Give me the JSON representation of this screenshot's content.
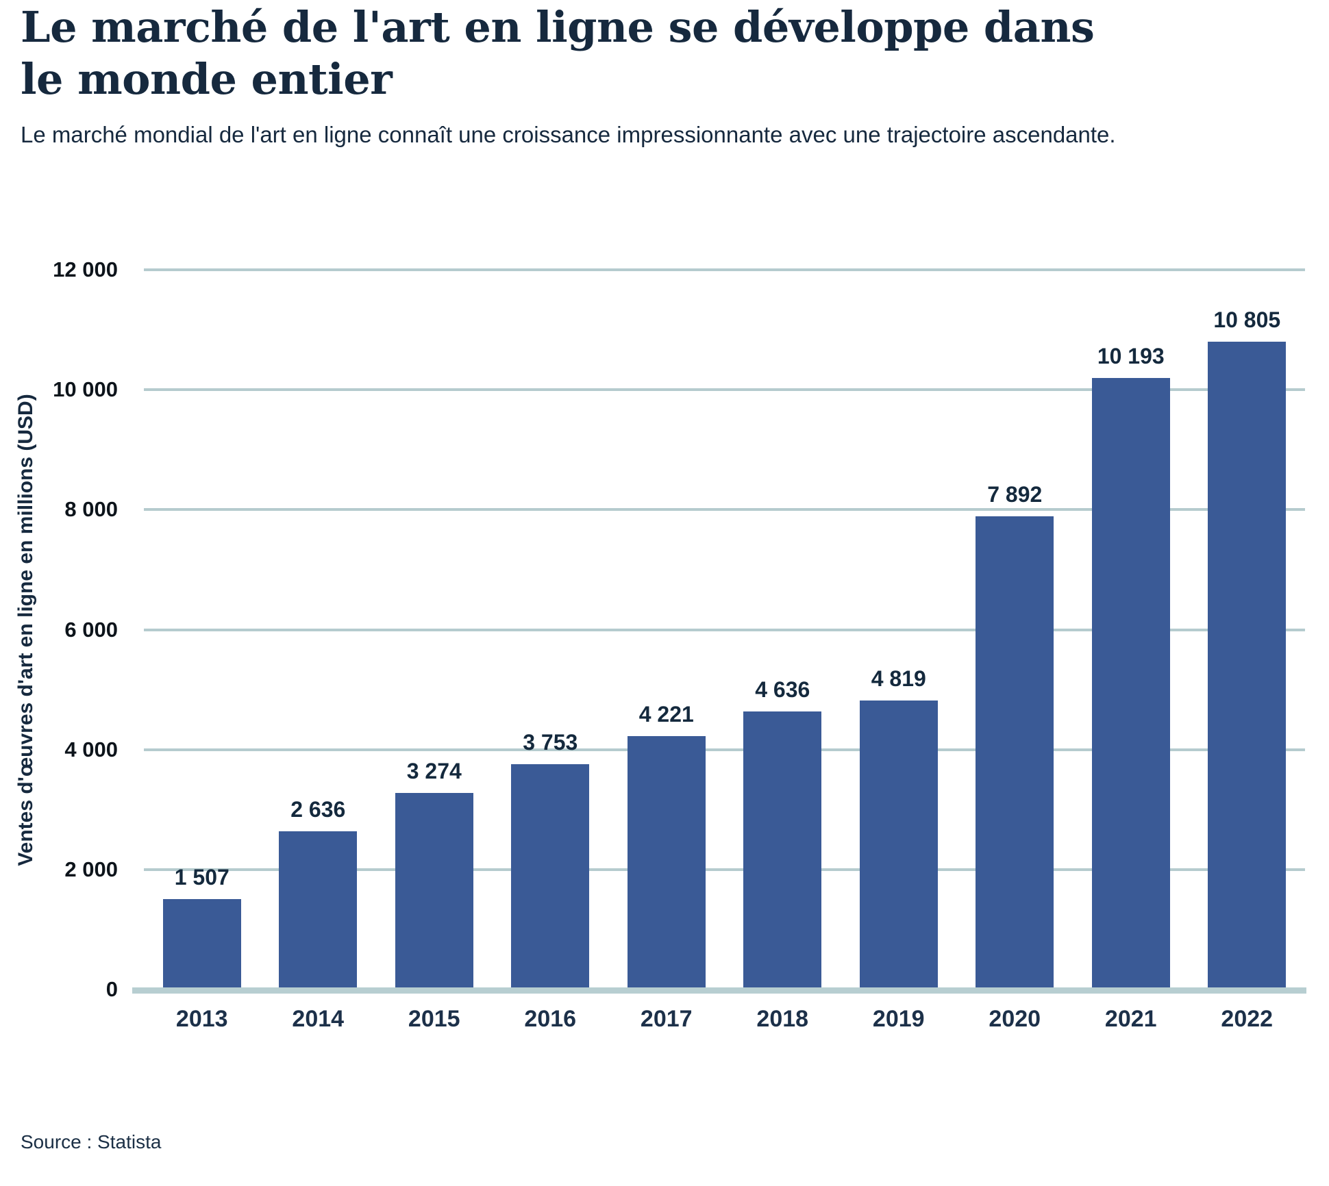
{
  "header": {
    "title": "Le marché de l'art en ligne se développe dans le monde entier",
    "subtitle": "Le marché mondial de l'art en ligne connaît une croissance impressionnante avec une trajectoire ascendante."
  },
  "chart_data": {
    "type": "bar",
    "title": "Le marché de l'art en ligne se développe dans le monde entier",
    "subtitle": "Le marché mondial de l'art en ligne connaît une croissance impressionnante avec une trajectoire ascendante.",
    "categories": [
      "2013",
      "2014",
      "2015",
      "2016",
      "2017",
      "2018",
      "2019",
      "2020",
      "2021",
      "2022"
    ],
    "values": [
      1507,
      2636,
      3274,
      3753,
      4221,
      4636,
      4819,
      7892,
      10193,
      10805
    ],
    "value_labels": [
      "1 507",
      "2 636",
      "3 274",
      "3 753",
      "4 221",
      "4 636",
      "4 819",
      "7 892",
      "10 193",
      "10 805"
    ],
    "xlabel": "",
    "ylabel": "Ventes d'œuvres d'art en ligne en millions (USD)",
    "ylim": [
      0,
      12000
    ],
    "yticks": [
      {
        "value": 12000,
        "label": "12 000"
      },
      {
        "value": 10000,
        "label": "10 000"
      },
      {
        "value": 8000,
        "label": "8 000"
      },
      {
        "value": 6000,
        "label": "6 000"
      },
      {
        "value": 4000,
        "label": "4 000"
      },
      {
        "value": 2000,
        "label": "2 000"
      },
      {
        "value": 0,
        "label": "0"
      }
    ],
    "grid": true,
    "legend": "none",
    "colors": {
      "bar": "#3A5A96",
      "gridline": "#B5CBCE",
      "baseline": "#B7CED1",
      "title_text": "#16293E",
      "data_label_text": "#14293D",
      "tick_text": "#0D141B",
      "year_text": "#1C3049"
    }
  },
  "footer": {
    "source": "Source : Statista"
  }
}
